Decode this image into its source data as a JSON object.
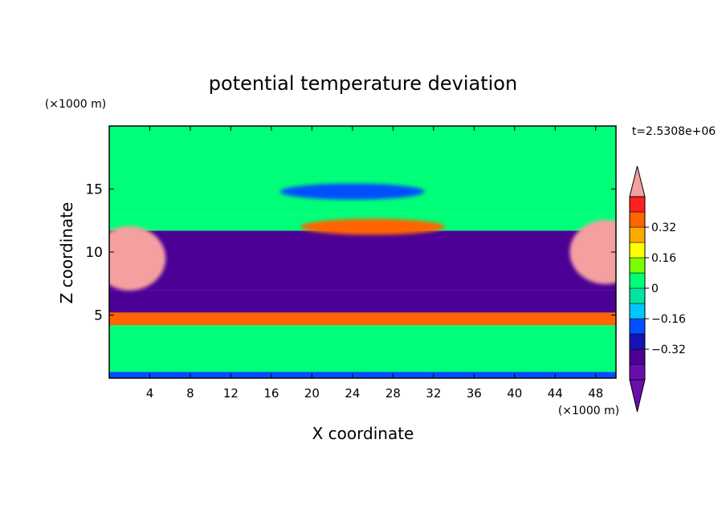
{
  "chart_data": {
    "type": "heatmap",
    "title": "potential temperature deviation",
    "xlabel": "X coordinate",
    "ylabel": "Z coordinate",
    "x_unit": "(×1000 m)",
    "y_unit": "(×1000 m)",
    "time_label": "t=2.5308e+06",
    "xlim": [
      0,
      50
    ],
    "ylim": [
      0,
      20
    ],
    "x_ticks": [
      4,
      8,
      12,
      16,
      20,
      24,
      28,
      32,
      36,
      40,
      44,
      48
    ],
    "y_ticks": [
      5,
      10,
      15
    ],
    "colorbar": {
      "levels": [
        -0.48,
        -0.4,
        -0.32,
        -0.24,
        -0.16,
        -0.08,
        0,
        0.08,
        0.16,
        0.24,
        0.32,
        0.4,
        0.48
      ],
      "labels": [
        "0.32",
        "0.16",
        "0",
        "−0.16",
        "−0.32"
      ],
      "label_values": [
        0.32,
        0.16,
        0,
        -0.16,
        -0.32
      ],
      "colors": [
        "#6a0dad",
        "#4b0096",
        "#1414b4",
        "#0050ff",
        "#00c8ff",
        "#00e6a0",
        "#00ff78",
        "#78ff00",
        "#ffff00",
        "#ffaa00",
        "#ff6400",
        "#ff2020",
        "#f4a0a0"
      ],
      "under_color": "#6a0dad",
      "over_color": "#f4a0a0"
    },
    "bands": [
      {
        "z": [
          0.0,
          0.5
        ],
        "value": -0.2
      },
      {
        "z": [
          0.5,
          4.2
        ],
        "value": 0.0
      },
      {
        "z": [
          4.2,
          5.2
        ],
        "value": 0.32
      },
      {
        "z": [
          5.2,
          7.0
        ],
        "value": -0.4
      },
      {
        "z": [
          7.0,
          11.7
        ],
        "value": -0.35
      },
      {
        "z": [
          11.7,
          13.0
        ],
        "value": 0.05
      },
      {
        "z": [
          13.0,
          15.8
        ],
        "value": 0.0
      },
      {
        "z": [
          15.8,
          20.0
        ],
        "value": 0.05
      }
    ],
    "features": [
      {
        "name": "upper warm blob",
        "x": 26,
        "z": 12.0,
        "value": 0.32
      },
      {
        "name": "cold lens",
        "x": 24,
        "z": 14.8,
        "value": -0.2
      },
      {
        "name": "left warm flank",
        "x": 2,
        "z": 9.5,
        "value": 0.5
      },
      {
        "name": "right warm flank",
        "x": 49,
        "z": 10.0,
        "value": 0.5
      }
    ]
  }
}
